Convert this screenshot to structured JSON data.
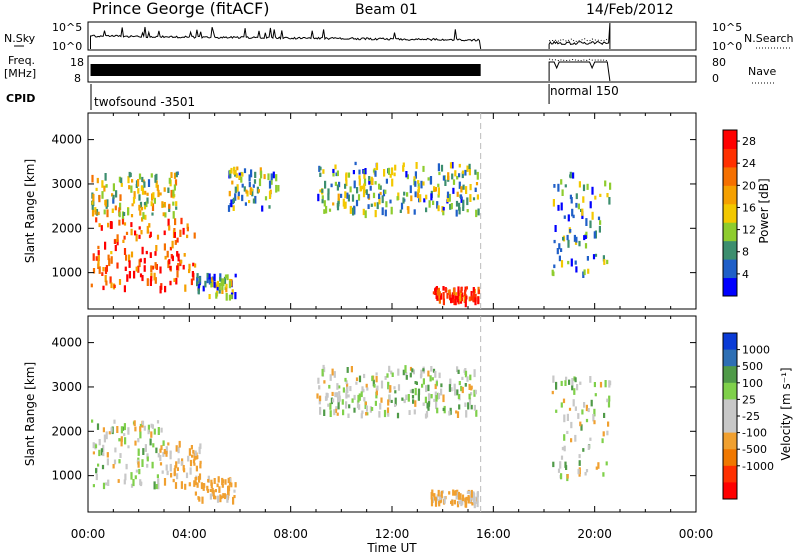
{
  "header": {
    "title": "Prince George (fitACF)",
    "beam": "Beam 01",
    "date": "14/Feb/2012"
  },
  "panels": {
    "nsky": {
      "left_label": "N.Sky",
      "left_ticks": [
        "10^5",
        "10^0"
      ],
      "right_ticks": [
        "10^5",
        "10^0"
      ],
      "right_label": "N.Search"
    },
    "freq": {
      "left_label_1": "Freq.",
      "left_label_2": "[MHz]",
      "left_ticks": [
        "18",
        "8"
      ],
      "right_ticks": [
        "80",
        "0"
      ],
      "right_label": "Nave"
    },
    "cpid": {
      "label": "CPID",
      "entries": [
        {
          "text": "twofsound -3501",
          "start_hour": 0.0
        },
        {
          "text": "normal 150",
          "start_hour": 18.2
        }
      ]
    }
  },
  "colors": {
    "power": [
      "#0000ff",
      "#1f5fc8",
      "#3c8e6e",
      "#8ecc2e",
      "#f3c800",
      "#f5a000",
      "#f57000",
      "#ff3000",
      "#ff0000"
    ],
    "velocity": [
      "#0a3bd6",
      "#2e6fb4",
      "#4f9a48",
      "#7fd04a",
      "#c8c8c8",
      "#c8c8c8",
      "#f0a030",
      "#f07800",
      "#ff3000",
      "#ff0000"
    ],
    "data_gap_line": "#bbbbbb"
  },
  "chart_data": [
    {
      "type": "heatmap",
      "panel": "power",
      "xlabel": "Time UT",
      "ylabel": "Slant Range [km]",
      "x_ticks": [
        "00:00",
        "04:00",
        "08:00",
        "12:00",
        "16:00",
        "20:00",
        "00:00"
      ],
      "xlim_hours": [
        0,
        24
      ],
      "y_ticks": [
        1000,
        2000,
        3000,
        4000
      ],
      "ylim_km": [
        180,
        4600
      ],
      "colorbar": {
        "label": "Power [dB]",
        "ticks": [
          4,
          8,
          12,
          16,
          20,
          24,
          28
        ],
        "range": [
          0,
          30
        ]
      },
      "data_gap_hours": [
        15.5,
        18.2
      ],
      "end_of_data_hour": 20.6,
      "echo_regions": [
        {
          "t0": 0.1,
          "t1": 4.2,
          "r0": 700,
          "r1": 2300,
          "power_db": 24
        },
        {
          "t0": 0.1,
          "t1": 3.5,
          "r0": 2300,
          "r1": 3300,
          "power_db": 14
        },
        {
          "t0": 4.2,
          "t1": 5.8,
          "r0": 500,
          "r1": 1000,
          "power_db": 10
        },
        {
          "t0": 5.5,
          "t1": 7.5,
          "r0": 2500,
          "r1": 3400,
          "power_db": 10
        },
        {
          "t0": 9.0,
          "t1": 15.4,
          "r0": 2400,
          "r1": 3500,
          "power_db": 10
        },
        {
          "t0": 13.5,
          "t1": 15.4,
          "r0": 400,
          "r1": 700,
          "power_db": 26
        },
        {
          "t0": 18.3,
          "t1": 20.6,
          "r0": 1000,
          "r1": 3300,
          "power_db": 8
        }
      ]
    },
    {
      "type": "heatmap",
      "panel": "velocity",
      "xlabel": "Time UT",
      "ylabel": "Slant Range [km]",
      "x_ticks": [
        "00:00",
        "04:00",
        "08:00",
        "12:00",
        "16:00",
        "20:00",
        "00:00"
      ],
      "xlim_hours": [
        0,
        24
      ],
      "y_ticks": [
        1000,
        2000,
        3000,
        4000
      ],
      "ylim_km": [
        180,
        4600
      ],
      "colorbar": {
        "label": "Velocity [m s⁻¹]",
        "ticks": [
          1000,
          500,
          100,
          25,
          -25,
          -100,
          -500,
          -1000
        ]
      },
      "data_gap_hours": [
        15.5,
        18.2
      ],
      "end_of_data_hour": 20.6,
      "echo_regions": [
        {
          "t0": 0.1,
          "t1": 3.0,
          "r0": 800,
          "r1": 2300,
          "velocity_ms": 0
        },
        {
          "t0": 2.8,
          "t1": 4.4,
          "r0": 800,
          "r1": 1800,
          "velocity_ms": -150
        },
        {
          "t0": 4.2,
          "t1": 5.8,
          "r0": 500,
          "r1": 1000,
          "velocity_ms": -200
        },
        {
          "t0": 9.0,
          "t1": 15.4,
          "r0": 2400,
          "r1": 3500,
          "velocity_ms": 0
        },
        {
          "t0": 13.5,
          "t1": 15.4,
          "r0": 400,
          "r1": 700,
          "velocity_ms": -150
        },
        {
          "t0": 18.3,
          "t1": 20.6,
          "r0": 1000,
          "r1": 3300,
          "velocity_ms": 10
        }
      ]
    }
  ]
}
